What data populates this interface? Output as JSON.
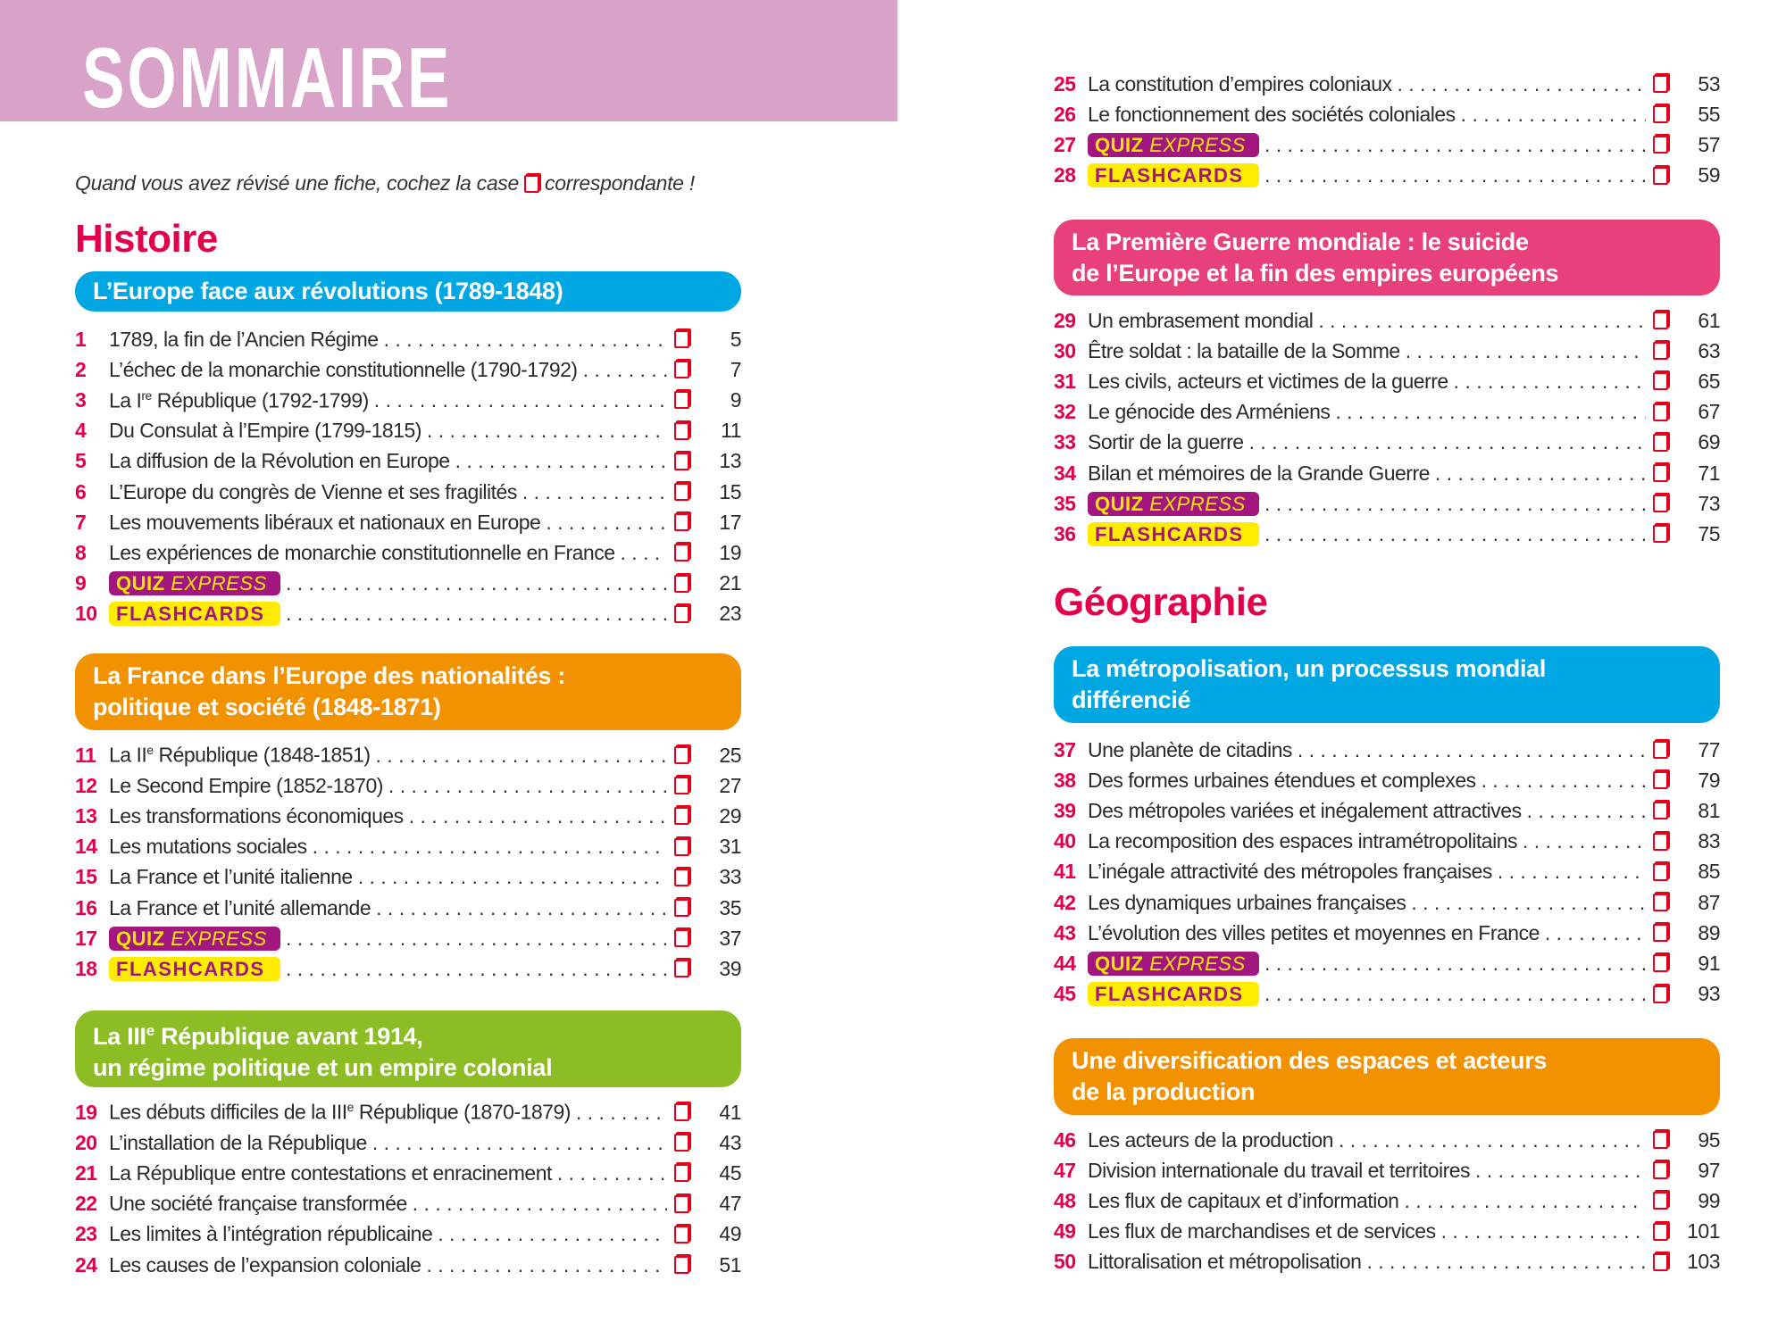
{
  "header": {
    "title": "SOMMAIRE"
  },
  "intro": {
    "before": "Quand vous avez révisé une fiche, cochez la case",
    "after": "correspondante !"
  },
  "badges": {
    "quiz_bold": "QUIZ",
    "quiz_italic": "EXPRESS",
    "flashcards": "FLASHCARDS"
  },
  "colors": {
    "header": "#d8a2c9",
    "accent": "#e2004b",
    "blue": "#00a7e3",
    "orange": "#f39200",
    "green": "#8cbd24",
    "pink": "#e8407b",
    "quiz": "#a3167f",
    "flash": "#ffec00"
  },
  "sections": {
    "histoire": "Histoire",
    "geographie": "Géographie"
  },
  "chapters": [
    {
      "id": "c1",
      "color": "#00a7e3",
      "lines": [
        "L’Europe face aux révolutions (1789-1848)"
      ],
      "items": [
        {
          "n": "1",
          "t": "1789, la fin de l’Ancien Régime",
          "p": "5"
        },
        {
          "n": "2",
          "t": "L’échec de la monarchie constitutionnelle (1790-1792)",
          "p": "7"
        },
        {
          "n": "3",
          "t": "La I",
          "sup": "re",
          "t2": " République (1792-1799)",
          "p": "9"
        },
        {
          "n": "4",
          "t": "Du Consulat à l’Empire (1799-1815)",
          "p": "11"
        },
        {
          "n": "5",
          "t": "La diffusion de la Révolution en Europe",
          "p": "13"
        },
        {
          "n": "6",
          "t": "L’Europe du congrès de Vienne et ses fragilités",
          "p": "15"
        },
        {
          "n": "7",
          "t": "Les mouvements libéraux et nationaux en Europe",
          "p": "17"
        },
        {
          "n": "8",
          "t": "Les expériences de monarchie constitutionnelle en France",
          "p": "19"
        },
        {
          "n": "9",
          "type": "quiz",
          "p": "21"
        },
        {
          "n": "10",
          "type": "flash",
          "p": "23"
        }
      ]
    },
    {
      "id": "c2",
      "color": "#f39200",
      "lines": [
        "La France dans l’Europe des nationalités :",
        "politique et société (1848-1871)"
      ],
      "items": [
        {
          "n": "11",
          "t": "La II",
          "sup": "e",
          "t2": " République (1848-1851)",
          "p": "25"
        },
        {
          "n": "12",
          "t": "Le Second Empire (1852-1870)",
          "p": "27"
        },
        {
          "n": "13",
          "t": "Les transformations économiques",
          "p": "29"
        },
        {
          "n": "14",
          "t": "Les mutations sociales",
          "p": "31"
        },
        {
          "n": "15",
          "t": "La France et l’unité italienne",
          "p": "33"
        },
        {
          "n": "16",
          "t": "La France et l’unité allemande",
          "p": "35"
        },
        {
          "n": "17",
          "type": "quiz",
          "p": "37"
        },
        {
          "n": "18",
          "type": "flash",
          "p": "39"
        }
      ]
    },
    {
      "id": "c3",
      "color": "#8cbd24",
      "lines": [
        "La III|e| République avant 1914,",
        "un régime politique et un empire colonial"
      ],
      "items": [
        {
          "n": "19",
          "t": "Les débuts difficiles de la III",
          "sup": "e",
          "t2": " République (1870-1879)",
          "p": "41"
        },
        {
          "n": "20",
          "t": "L’installation de la République",
          "p": "43"
        },
        {
          "n": "21",
          "t": "La République entre contestations et enracinement",
          "p": "45"
        },
        {
          "n": "22",
          "t": "Une société française transformée",
          "p": "47"
        },
        {
          "n": "23",
          "t": "Les limites à l’intégration républicaine",
          "p": "49"
        },
        {
          "n": "24",
          "t": "Les causes de l’expansion coloniale",
          "p": "51"
        },
        {
          "n": "25",
          "t": "La constitution d’empires coloniaux",
          "p": "53"
        },
        {
          "n": "26",
          "t": "Le fonctionnement des sociétés coloniales",
          "p": "55"
        },
        {
          "n": "27",
          "type": "quiz",
          "p": "57"
        },
        {
          "n": "28",
          "type": "flash",
          "p": "59"
        }
      ]
    },
    {
      "id": "c4",
      "color": "#e8407b",
      "lines": [
        "La Première Guerre mondiale : le suicide",
        "de l’Europe et la fin des empires européens"
      ],
      "items": [
        {
          "n": "29",
          "t": "Un embrasement mondial",
          "p": "61"
        },
        {
          "n": "30",
          "t": "Être soldat : la bataille de la Somme",
          "p": "63"
        },
        {
          "n": "31",
          "t": "Les civils, acteurs et victimes de la guerre",
          "p": "65"
        },
        {
          "n": "32",
          "t": "Le génocide des Arméniens",
          "p": "67"
        },
        {
          "n": "33",
          "t": "Sortir de la guerre",
          "p": "69"
        },
        {
          "n": "34",
          "t": "Bilan et mémoires de la Grande Guerre",
          "p": "71"
        },
        {
          "n": "35",
          "type": "quiz",
          "p": "73"
        },
        {
          "n": "36",
          "type": "flash",
          "p": "75"
        }
      ]
    },
    {
      "id": "c5",
      "color": "#00a7e3",
      "lines": [
        "La métropolisation, un processus mondial",
        "différencié"
      ],
      "items": [
        {
          "n": "37",
          "t": "Une planète de citadins",
          "p": "77"
        },
        {
          "n": "38",
          "t": "Des formes urbaines étendues et complexes",
          "p": "79"
        },
        {
          "n": "39",
          "t": "Des métropoles variées et inégalement attractives",
          "p": "81"
        },
        {
          "n": "40",
          "t": "La recomposition des espaces intramétropolitains",
          "p": "83"
        },
        {
          "n": "41",
          "t": "L’inégale attractivité des métropoles françaises",
          "p": "85"
        },
        {
          "n": "42",
          "t": "Les dynamiques urbaines françaises",
          "p": "87"
        },
        {
          "n": "43",
          "t": "L’évolution des villes petites et moyennes en France",
          "p": "89"
        },
        {
          "n": "44",
          "type": "quiz",
          "p": "91"
        },
        {
          "n": "45",
          "type": "flash",
          "p": "93"
        }
      ]
    },
    {
      "id": "c6",
      "color": "#f39200",
      "lines": [
        "Une diversification des espaces et acteurs",
        "de la production"
      ],
      "items": [
        {
          "n": "46",
          "t": "Les acteurs de la production",
          "p": "95"
        },
        {
          "n": "47",
          "t": "Division internationale du travail et territoires",
          "p": "97"
        },
        {
          "n": "48",
          "t": "Les flux de capitaux et d’information",
          "p": "99"
        },
        {
          "n": "49",
          "t": "Les flux de marchandises et de services",
          "p": "101"
        },
        {
          "n": "50",
          "t": "Littoralisation et métropolisation",
          "p": "103"
        }
      ]
    }
  ]
}
